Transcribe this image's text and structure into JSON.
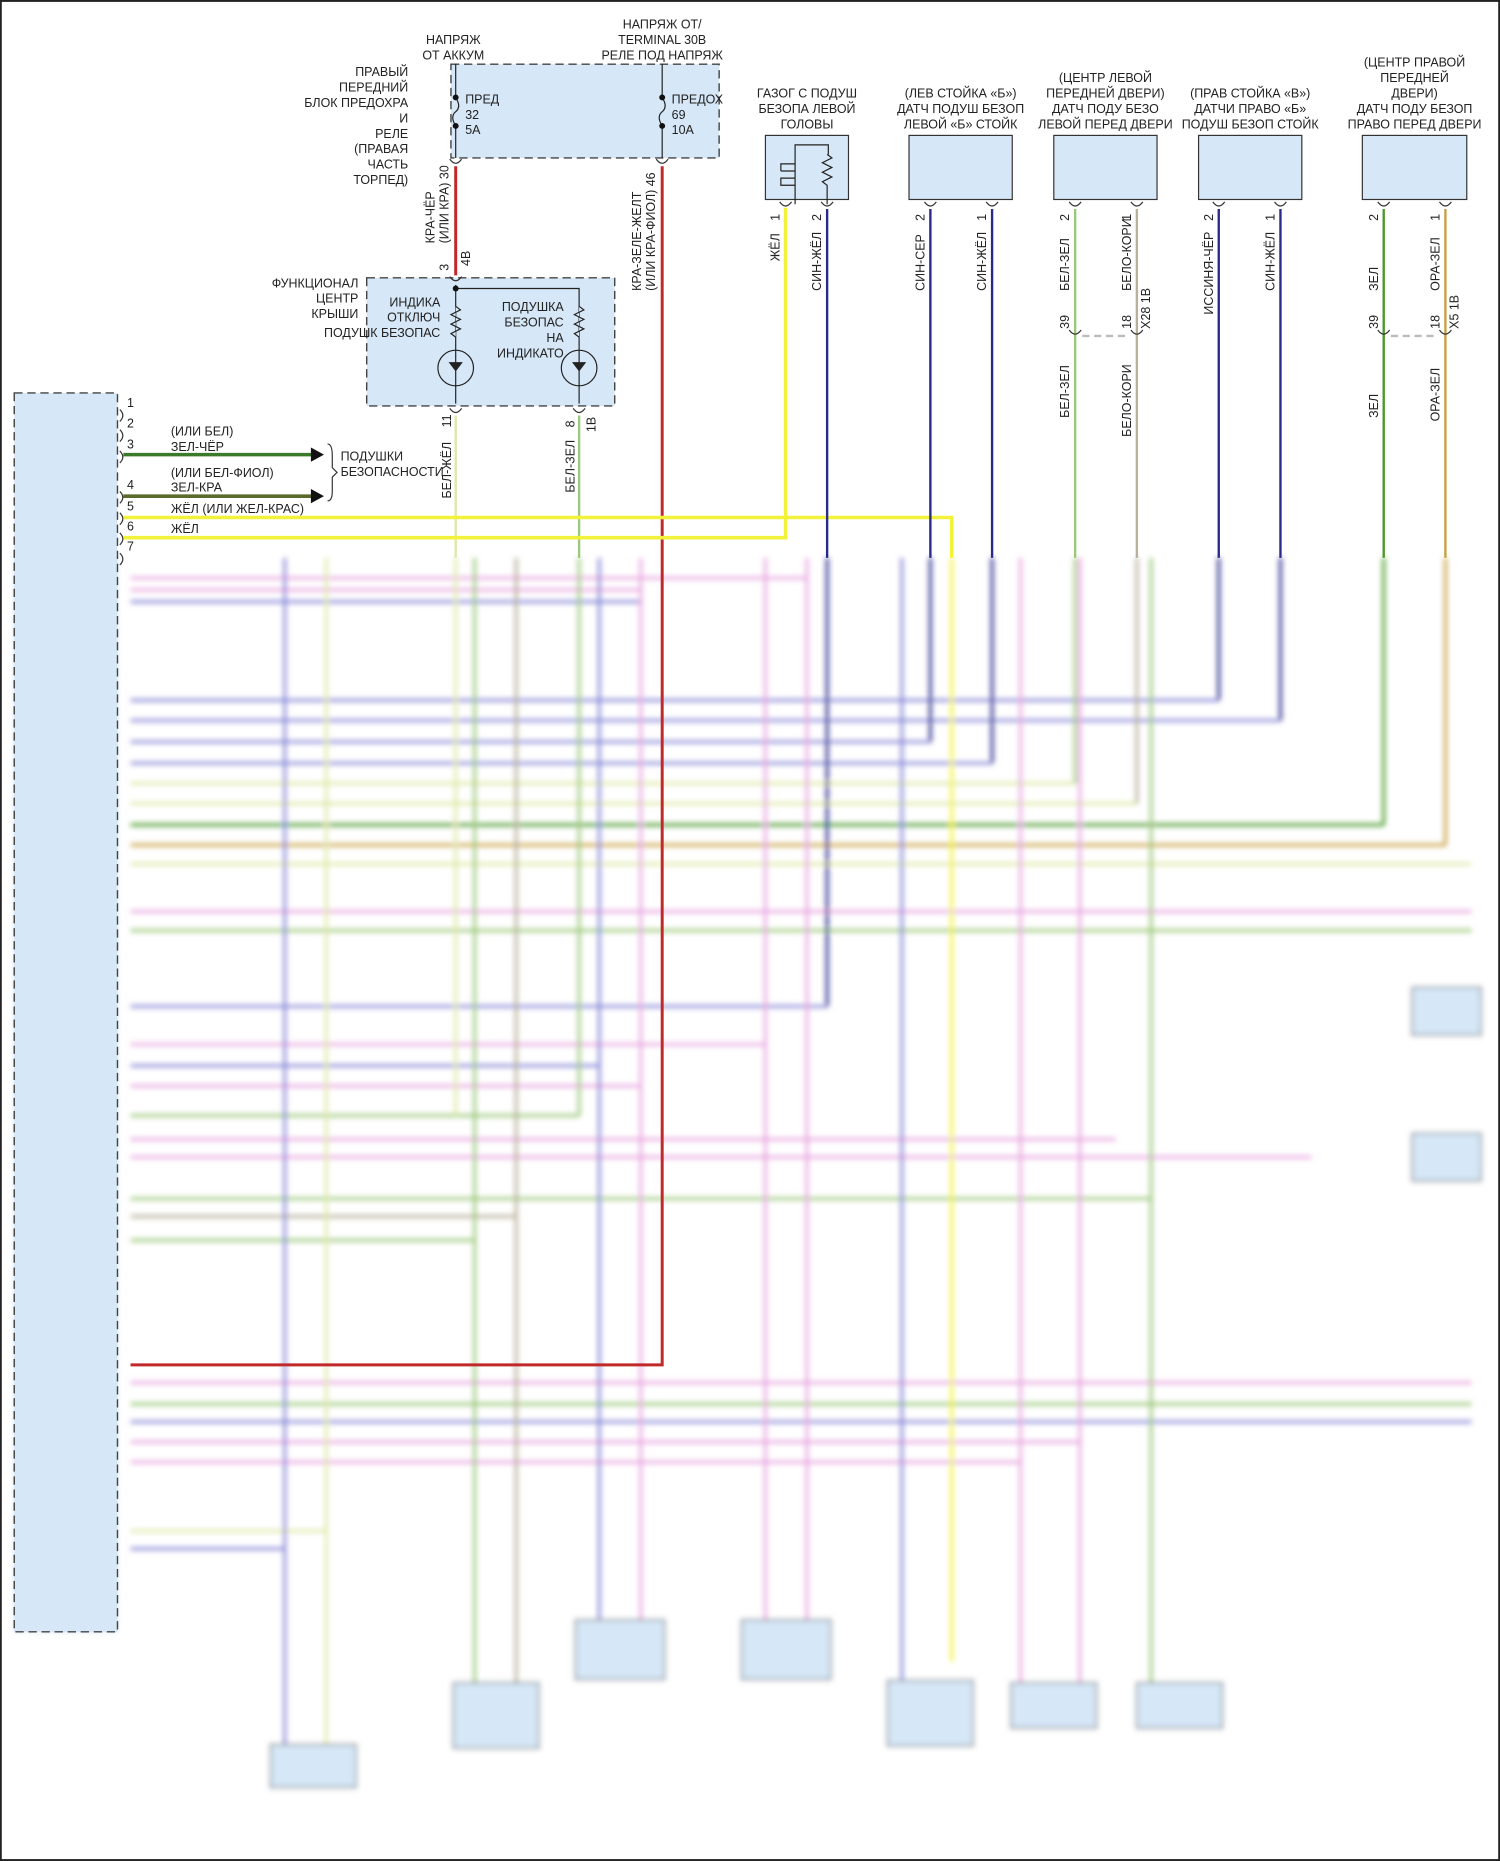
{
  "top_fuse_box": {
    "name": [
      "ПРАВЫЙ",
      "ПЕРЕДНИЙ",
      "БЛОК ПРЕДОХРА",
      "И",
      "РЕЛЕ",
      "(ПРАВАЯ",
      "ЧАСТЬ",
      "ТОРПЕД)"
    ],
    "supply_left": [
      "НАПРЯЖ",
      "ОТ АККУМ"
    ],
    "supply_right": [
      "НАПРЯЖ ОТ/",
      "TERMINAL 30B",
      "РЕЛЕ ПОД НАПРЯЖ"
    ],
    "fuse_left": [
      "ПРЕД",
      "32",
      "5A"
    ],
    "fuse_right": [
      "ПРЕДОХ",
      "69",
      "10A"
    ]
  },
  "wires_top": {
    "w30": [
      "КРА-ЧЁР",
      "(ИЛИ КРА) 30"
    ],
    "w30_pins": [
      "3",
      "4B"
    ],
    "w46": [
      "КРА-ЗЕЛЕ-ЖЕЛТ",
      "(ИЛИ КРА-ФИОЛ) 46"
    ]
  },
  "roof_center": {
    "name": [
      "ФУНКЦИОНАЛ",
      "ЦЕНТР",
      "КРЫШИ"
    ],
    "indicator_off": [
      "ИНДИКА",
      "ОТКЛЮЧ",
      "ПОДУШК БЕЗОПАС"
    ],
    "indicator_on": [
      "ПОДУШКА",
      "БЕЗОПАС",
      "НА",
      "ИНДИКАТО"
    ],
    "pin11": "11",
    "wire11": "БЕЛ-ЖЁЛ",
    "pin8": "8",
    "pin8_conn": "1B",
    "wire8": "БЕЛ-ЗЕЛ"
  },
  "module_pins": {
    "numbers": [
      "1",
      "2",
      "3",
      "4",
      "5",
      "6",
      "7"
    ],
    "p3_alt": "(ИЛИ БЕЛ)",
    "p3_wire": "ЗЕЛ-ЧЁР",
    "p4_alt": "(ИЛИ БЕЛ-ФИОЛ)",
    "p4_wire": "ЗЕЛ-КРА",
    "p5_wire": "ЖЁЛ  (ИЛИ ЖЕЛ-КРАС)",
    "p6_wire": "ЖЁЛ",
    "airbags": [
      "ПОДУШКИ",
      "БЕЗОПАСНОСТИ"
    ]
  },
  "sensors": [
    {
      "title": [
        "ГАЗОГ С ПОДУШ",
        "БЕЗОПА ЛЕВОЙ",
        "ГОЛОВЫ"
      ],
      "pins": [
        "1",
        "2"
      ],
      "wires": [
        "ЖЁЛ",
        "СИН-ЖЁЛ"
      ]
    },
    {
      "title": [
        "(ЛЕВ СТОЙКА «Б»)",
        "ДАТЧ ПОДУШ БЕЗОП",
        "ЛЕВОЙ «Б» СТОЙК"
      ],
      "pins": [
        "2",
        "1"
      ],
      "wires": [
        "СИН-СЕР",
        "СИН-ЖЁЛ"
      ]
    },
    {
      "title": [
        "(ЦЕНТР ЛЕВОЙ",
        "ПЕРЕДНЕЙ ДВЕРИ)",
        "ДАТЧ ПОДУ БЕЗО",
        "ЛЕВОЙ ПЕРЕД ДВЕРИ"
      ],
      "pins": [
        "2",
        "1"
      ],
      "wires": [
        "БЕЛ-ЗЕЛ",
        "БЕЛО-КОРИ"
      ],
      "conn": "X28 1B",
      "conn_pins": [
        "39",
        "18"
      ],
      "wires_below": [
        "БЕЛ-ЗЕЛ",
        "БЕЛО-КОРИ"
      ]
    },
    {
      "title": [
        "(ПРАВ СТОЙКА «В»)",
        "ДАТЧИ ПРАВО «Б»",
        "ПОДУШ БЕЗОП СТОЙК"
      ],
      "pins": [
        "2",
        "1"
      ],
      "wires": [
        "ИССИНЯ-ЧЁР",
        "СИН-ЖЁЛ"
      ]
    },
    {
      "title": [
        "(ЦЕНТР ПРАВОЙ",
        "ПЕРЕДНЕЙ",
        "ДВЕРИ)",
        "ДАТЧ ПОДУ БЕЗОП",
        "ПРАВО ПЕРЕД ДВЕРИ"
      ],
      "pins": [
        "2",
        "1"
      ],
      "wires": [
        "ЗЕЛ",
        "ОРА-ЗЕЛ"
      ],
      "conn": "X5 1B",
      "conn_pins": [
        "39",
        "18"
      ],
      "wires_below": [
        "ЗЕЛ",
        "ОРА-ЗЕЛ"
      ]
    }
  ],
  "colors": {
    "panel_fill": "#d6e7f7",
    "red": "#c0282a",
    "yellow": "#f2f23a",
    "navy": "#2a2a8c",
    "light_green": "#9cc87a",
    "tan": "#b8b09a",
    "green": "#4a9a2a",
    "ochre": "#c8a040",
    "dark_green": "#3a7a2a",
    "olive": "#5a6a2a",
    "pale_yellow": "#dfe8a8",
    "pink": "#e8a8e0",
    "purple": "#8a8ad8"
  }
}
